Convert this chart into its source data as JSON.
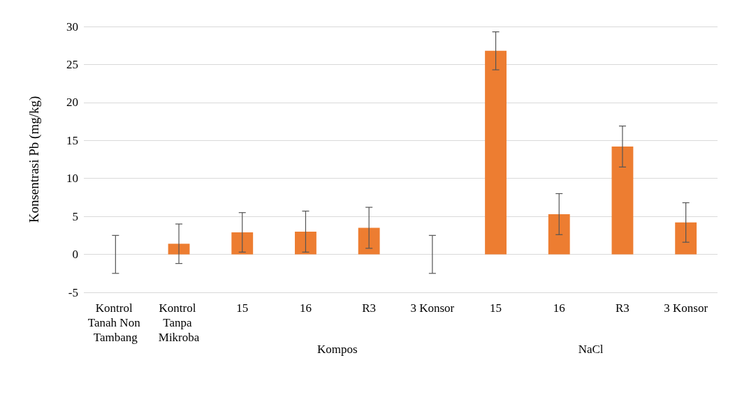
{
  "chart_data": {
    "type": "bar",
    "ylabel": "Konsentrasi Pb (mg/kg)",
    "categories": [
      "Kontrol Tanah Non Tambang",
      "Kontrol Tanpa Mikroba",
      "15",
      "16",
      "R3",
      "3 Konsor",
      "15",
      "16",
      "R3",
      "3 Konsor"
    ],
    "values": [
      0,
      1.4,
      2.9,
      3.0,
      3.5,
      0,
      26.8,
      5.3,
      14.2,
      4.2
    ],
    "errors": [
      2.5,
      2.6,
      2.6,
      2.7,
      2.7,
      2.5,
      2.5,
      2.7,
      2.7,
      2.6
    ],
    "color": "#ed7d31",
    "ylim": [
      -5,
      30
    ],
    "yticks": [
      -5,
      0,
      5,
      10,
      15,
      20,
      25,
      30
    ],
    "grid": "y",
    "annotations": [
      "Kompos",
      "NaCl"
    ]
  }
}
